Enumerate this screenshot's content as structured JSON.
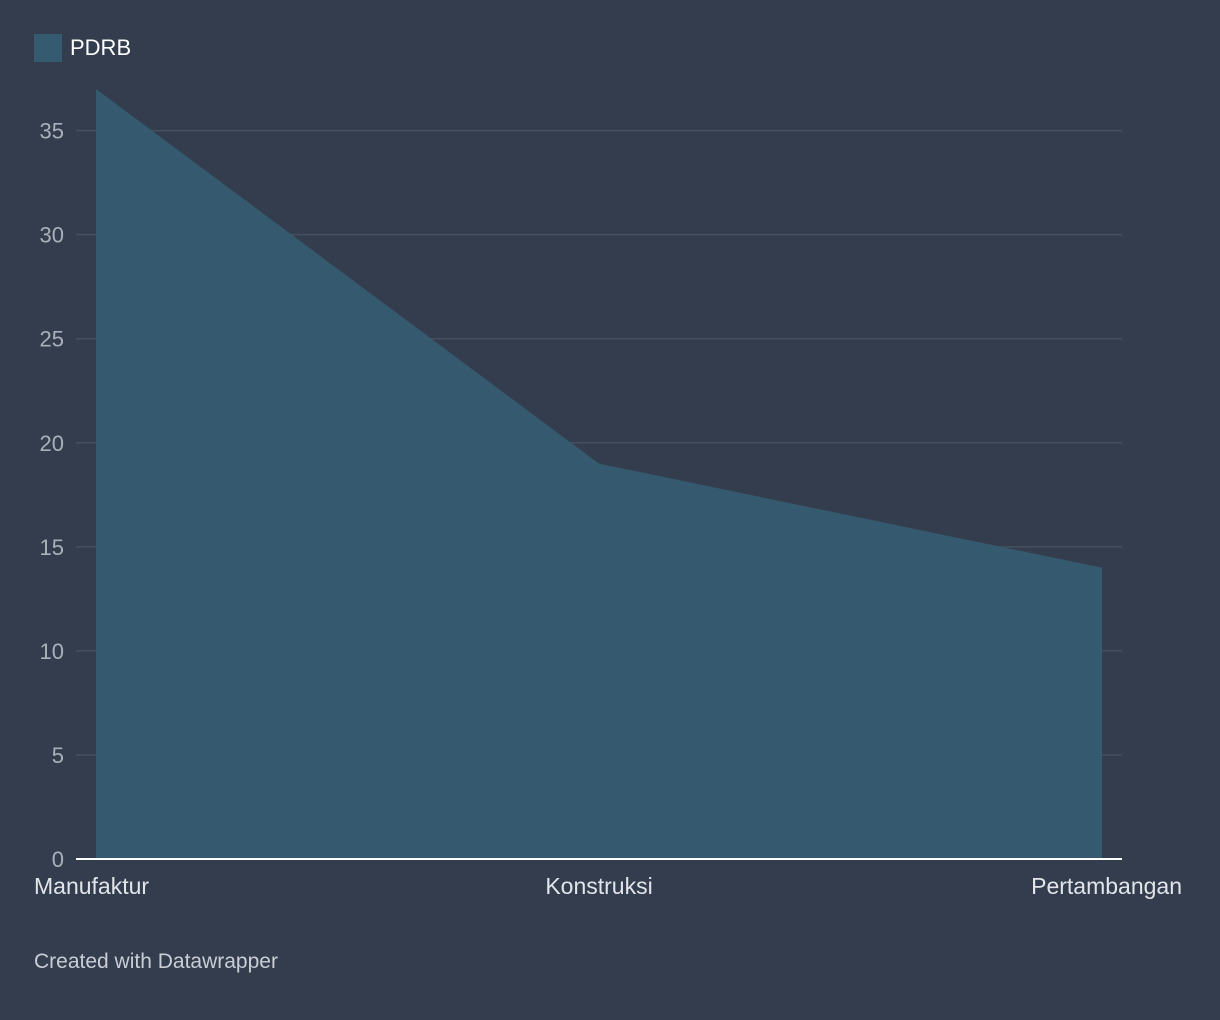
{
  "chart_data": {
    "type": "area",
    "categories": [
      "Manufaktur",
      "Konstruksi",
      "Pertambangan"
    ],
    "series": [
      {
        "name": "PDRB",
        "values": [
          37,
          19,
          14
        ],
        "color": "#365b70"
      }
    ],
    "ylim": [
      0,
      37
    ],
    "yticks": [
      0,
      5,
      10,
      15,
      20,
      25,
      30,
      35
    ],
    "grid": true,
    "legend_position": "top-left"
  },
  "footer": {
    "credit": "Created with Datawrapper"
  },
  "colors": {
    "background": "#333d4d",
    "grid": "#46505f",
    "axis": "#ffffff"
  }
}
